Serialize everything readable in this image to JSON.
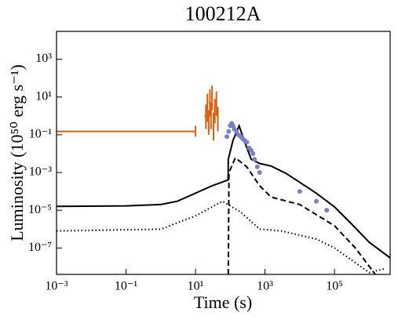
{
  "chart_data": {
    "type": "line",
    "title": "100212A",
    "x_label": "Time (s)",
    "y_label": "Luminosity (10⁵⁰ erg s⁻¹)",
    "log_x": true,
    "log_y": true,
    "xlim": [
      0.001,
      4000000
    ],
    "ylim": [
      4e-09,
      30000
    ],
    "xticks": [
      {
        "value": 0.001,
        "label": "10⁻³"
      },
      {
        "value": 0.1,
        "label": "10⁻¹"
      },
      {
        "value": 10,
        "label": "10¹"
      },
      {
        "value": 1000,
        "label": "10³"
      },
      {
        "value": 100000,
        "label": "10⁵"
      }
    ],
    "yticks": [
      {
        "value": 1000,
        "label": "10³"
      },
      {
        "value": 10,
        "label": "10¹"
      },
      {
        "value": 0.1,
        "label": "10⁻¹"
      },
      {
        "value": 0.001,
        "label": "10⁻³"
      },
      {
        "value": 1e-05,
        "label": "10⁻⁵"
      },
      {
        "value": 1e-07,
        "label": "10⁻⁷"
      }
    ],
    "series": [
      {
        "kind": "line",
        "color": "#000000",
        "dash": "solid",
        "x": [
          0.001,
          0.1,
          1,
          3,
          10,
          30,
          87,
          88,
          120,
          180,
          250,
          400,
          700,
          1500,
          4000,
          10000,
          30000,
          100000,
          300000,
          1000000,
          4000000
        ],
        "values": [
          1.6e-05,
          1.7e-05,
          2e-05,
          3e-05,
          8e-05,
          0.0002,
          0.0004,
          0.005,
          0.05,
          0.3,
          0.05,
          0.005,
          0.003,
          0.0022,
          0.0009,
          0.0003,
          8e-05,
          1.5e-05,
          2e-06,
          2e-07,
          3e-08
        ]
      },
      {
        "kind": "line",
        "color": "#000000",
        "dash": "dashed",
        "x": [
          88,
          92,
          140,
          300,
          700,
          1500,
          10000,
          100000,
          400000,
          1500000
        ],
        "values": [
          4e-09,
          0.001,
          0.006,
          0.002,
          0.0002,
          5e-05,
          2e-05,
          1.5e-06,
          1e-07,
          4e-09
        ]
      },
      {
        "kind": "line",
        "color": "#000000",
        "dash": "dotted",
        "x": [
          0.001,
          1,
          10,
          60,
          200,
          700,
          3000,
          30000,
          100000,
          1000000,
          2800000
        ],
        "values": [
          8e-07,
          1e-06,
          5e-06,
          3e-05,
          8e-06,
          1e-06,
          8e-07,
          3e-07,
          1e-07,
          5e-09,
          8e-09
        ]
      },
      {
        "kind": "errorbar",
        "color": "#d95f0e",
        "x": [
          10,
          20,
          22,
          24,
          26,
          28,
          30,
          33,
          36,
          40,
          44
        ],
        "x_low": [
          0.001,
          18,
          20,
          22,
          24,
          26,
          28,
          31,
          34,
          38,
          42
        ],
        "values": [
          0.15,
          1,
          3,
          0.5,
          5,
          1,
          10,
          0.3,
          2,
          5,
          0.8
        ],
        "y_low": [
          0.08,
          0.2,
          0.5,
          0.1,
          1,
          0.2,
          2,
          0.05,
          0.4,
          1,
          0.15
        ],
        "y_high": [
          0.3,
          4,
          15,
          2,
          25,
          5,
          40,
          1.5,
          8,
          20,
          3
        ]
      },
      {
        "kind": "points",
        "color": "#7b7fc4",
        "x": [
          80,
          90,
          100,
          110,
          120,
          130,
          150,
          170,
          200,
          230,
          260,
          300,
          350,
          400,
          450,
          500,
          600,
          700,
          10000,
          30000,
          60000
        ],
        "values": [
          0.08,
          0.15,
          0.3,
          0.4,
          0.3,
          0.2,
          0.15,
          0.1,
          0.08,
          0.06,
          0.05,
          0.04,
          0.02,
          0.015,
          0.01,
          0.005,
          0.002,
          0.001,
          0.0001,
          3e-05,
          1e-05
        ]
      }
    ]
  }
}
